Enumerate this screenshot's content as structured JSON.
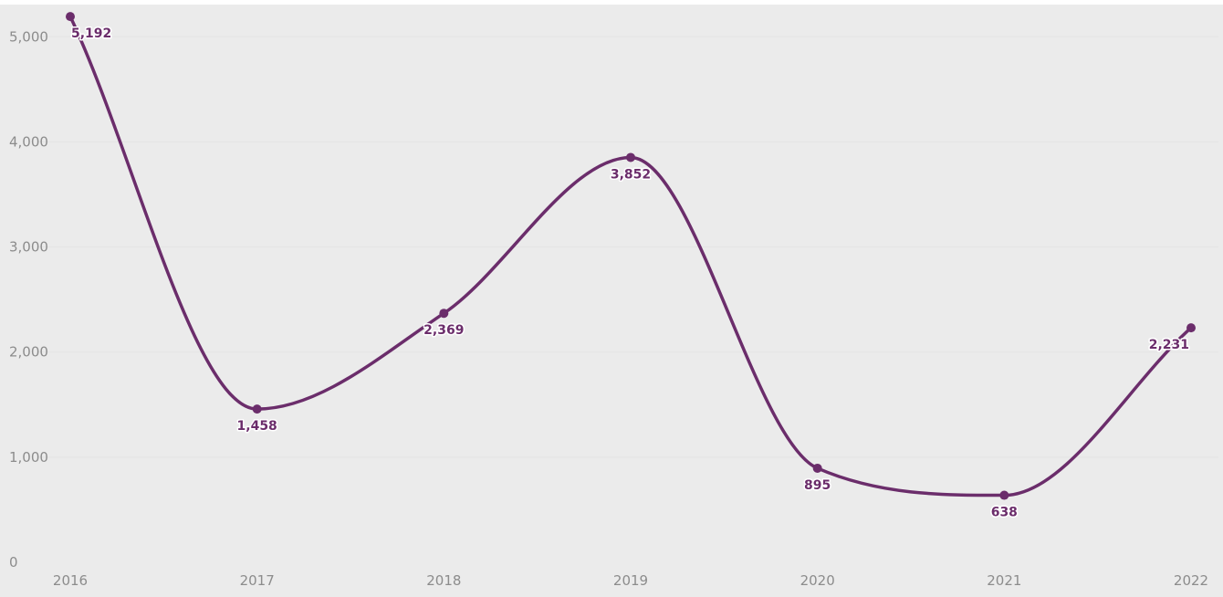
{
  "chart_data": {
    "type": "line",
    "categories": [
      "2016",
      "2017",
      "2018",
      "2019",
      "2020",
      "2021",
      "2022"
    ],
    "series": [
      {
        "values": [
          5192,
          1458,
          2369,
          3852,
          895,
          638,
          2231
        ],
        "labels": [
          "5,192",
          "1,458",
          "2,369",
          "3,852",
          "895",
          "638",
          "2,231"
        ]
      }
    ],
    "y_ticks": [
      0,
      1000,
      2000,
      3000,
      4000,
      5000
    ],
    "y_tick_labels": [
      "0",
      "1,000",
      "2,000",
      "3,000",
      "4,000",
      "5,000"
    ],
    "ylim": [
      0,
      5300
    ],
    "title": "",
    "xlabel": "",
    "ylabel": "",
    "grid": true,
    "legend": "none",
    "colors": {
      "line": "#6b2d6b",
      "background": "#ebebeb",
      "grid": "#e4e4e4",
      "tick_text": "#8c8c8c"
    }
  }
}
